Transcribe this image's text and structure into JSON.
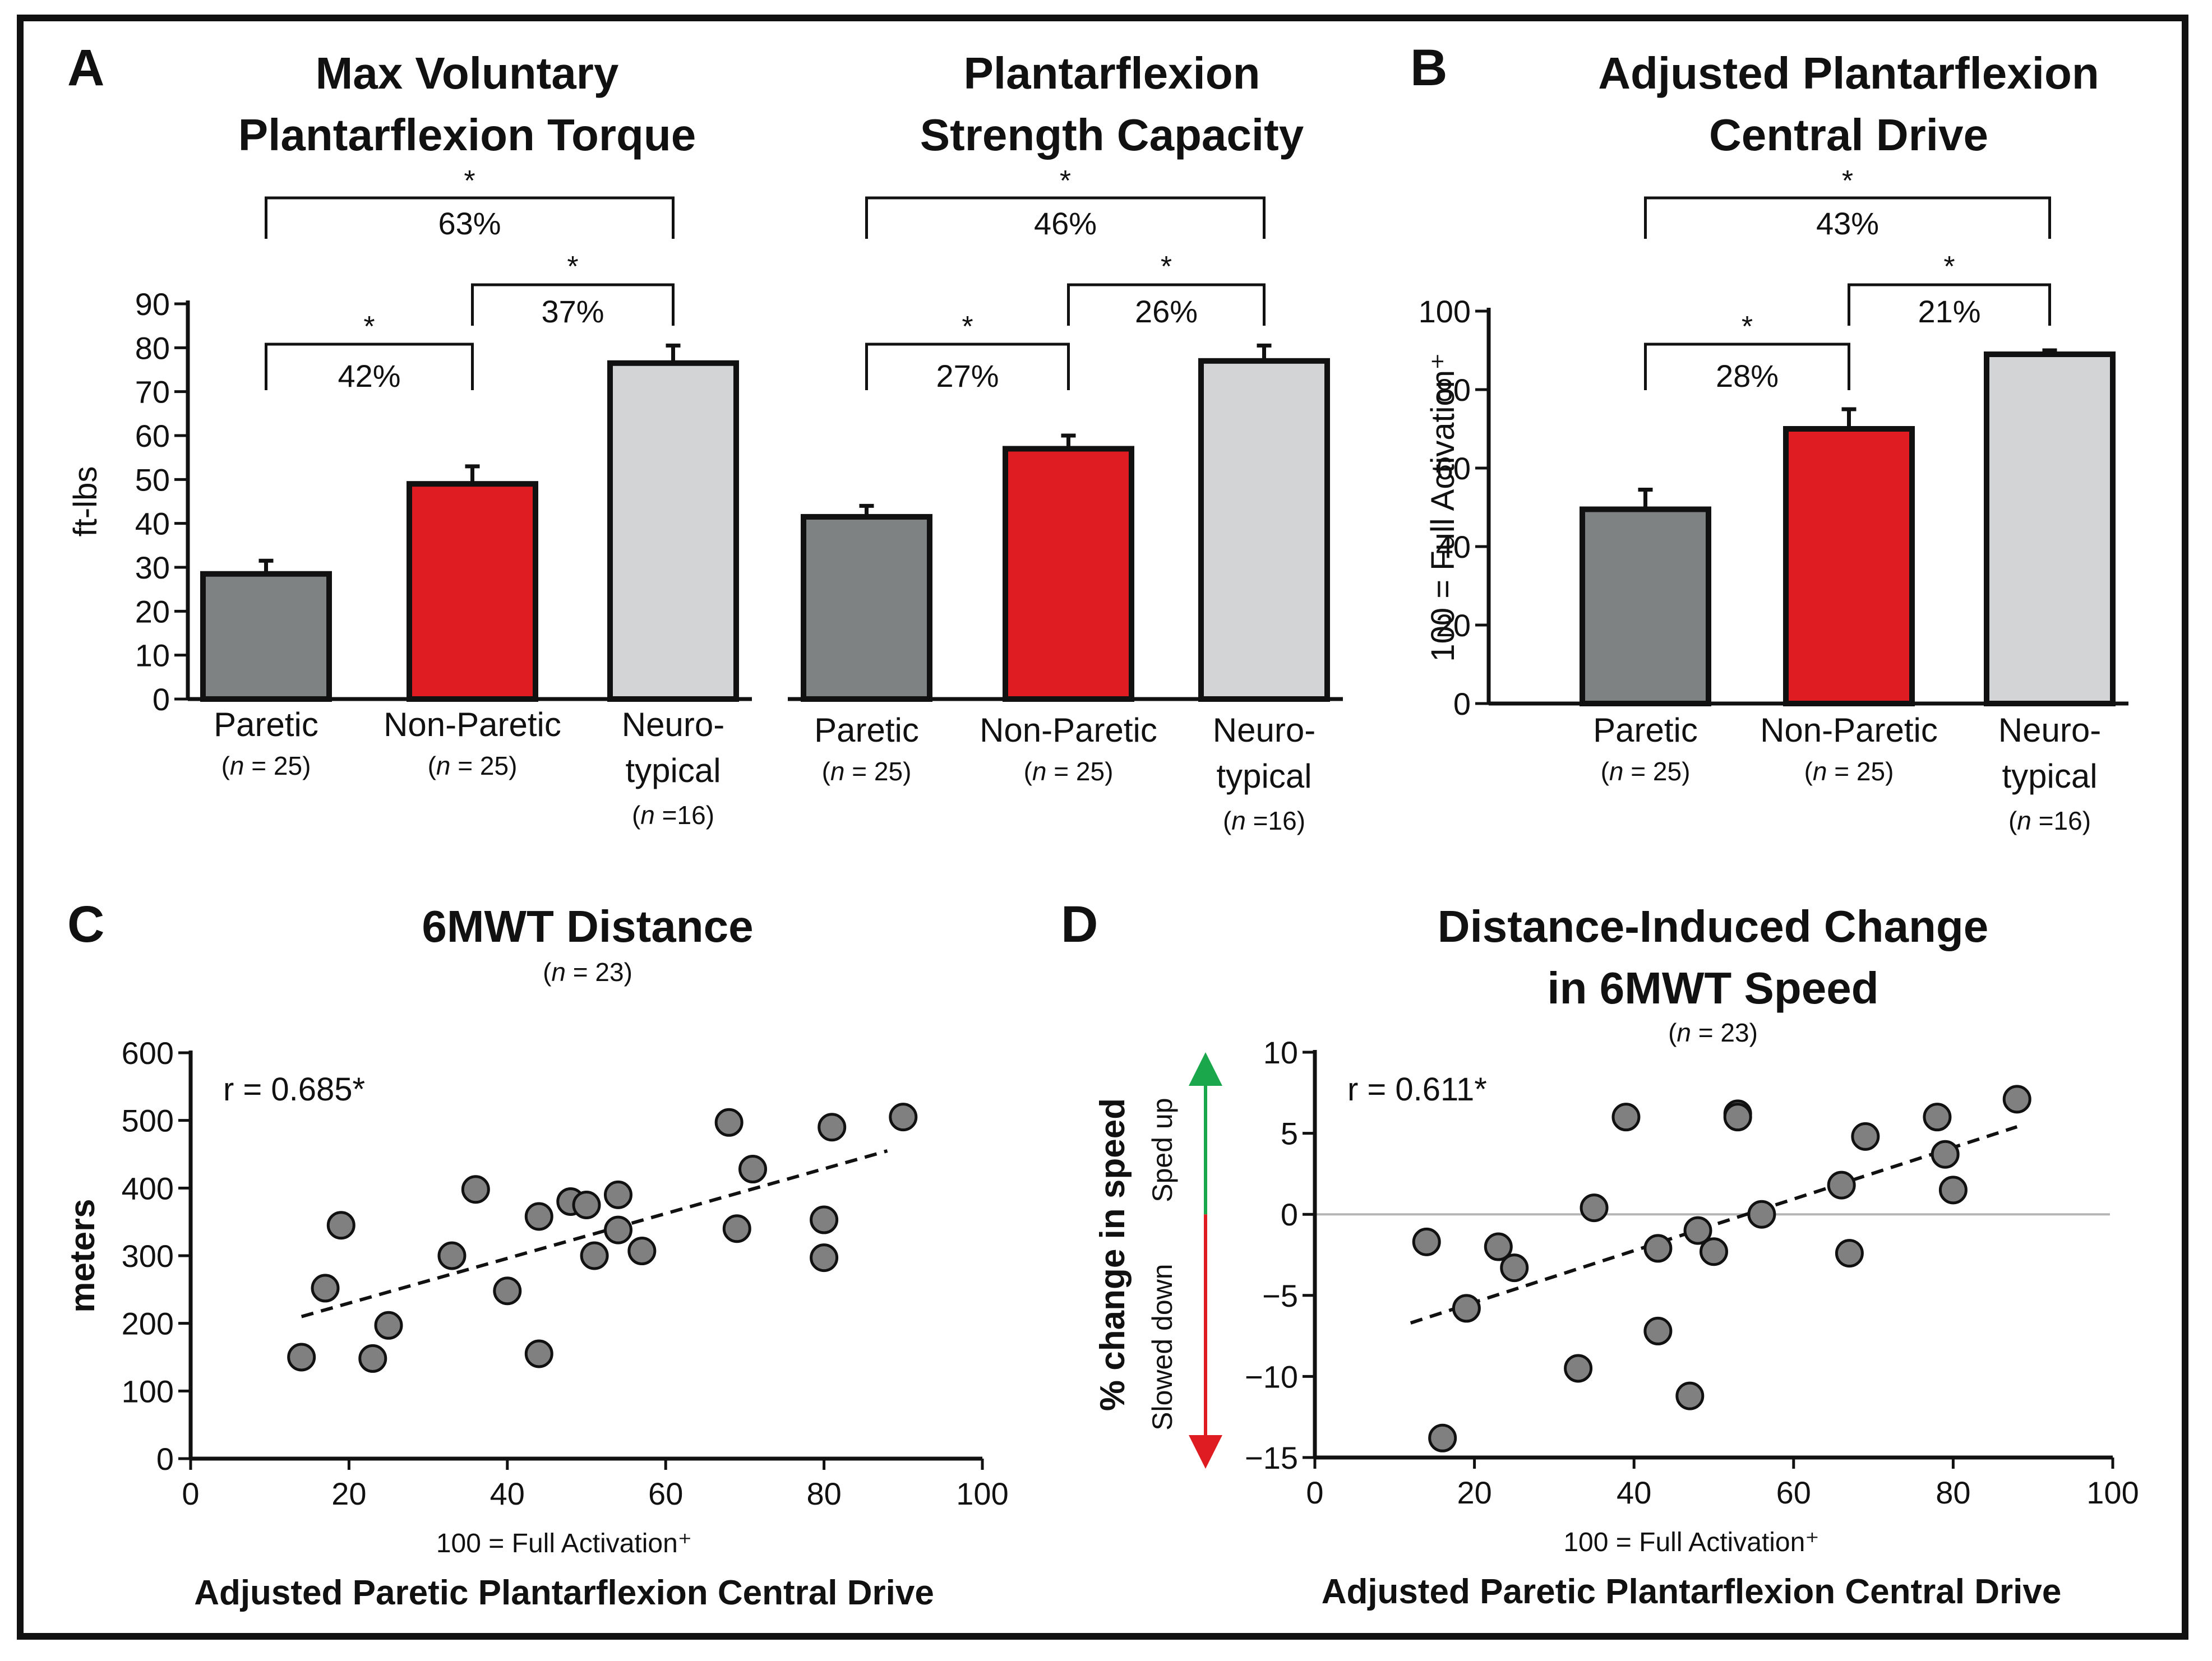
{
  "colors": {
    "paretic": "#7f8282",
    "non_paretic": "#e01c23",
    "neurotypical": "#d3d4d6",
    "point": "#808080",
    "speed_up": "#1aa64b",
    "slowed_down": "#e01c23",
    "zero_line": "#b5b5b5"
  },
  "icons": {
    "up_arrow": "up-arrow-icon",
    "down_arrow": "down-arrow-icon"
  },
  "group_counts": {
    "paretic": "(n = 25)",
    "non_paretic": "(n = 25)",
    "neurotypical": "(n =16)"
  },
  "chart_data": [
    {
      "id": "A1",
      "panel": "A",
      "type": "bar",
      "title_lines": [
        "Max Voluntary",
        "Plantarflexion Torque"
      ],
      "ylabel": "ft-lbs",
      "ylim": [
        0,
        90
      ],
      "yticks": [
        0,
        10,
        20,
        30,
        40,
        50,
        60,
        70,
        80,
        90
      ],
      "categories": [
        "Paretic",
        "Non-Paretic",
        "Neuro-typical"
      ],
      "category_lines": [
        [
          "Paretic"
        ],
        [
          "Non-Paretic"
        ],
        [
          "Neuro-",
          "typical"
        ]
      ],
      "values": [
        28.5,
        49,
        76.5
      ],
      "errors": [
        3,
        4,
        4
      ],
      "comparisons": [
        {
          "from": 0,
          "to": 1,
          "star": "*",
          "label": "42%"
        },
        {
          "from": 1,
          "to": 2,
          "star": "*",
          "label": "37%"
        },
        {
          "from": 0,
          "to": 2,
          "star": "*",
          "label": "63%"
        }
      ]
    },
    {
      "id": "A2",
      "panel": "",
      "type": "bar",
      "title_lines": [
        "Plantarflexion",
        "Strength Capacity"
      ],
      "ylabel": "",
      "ylim": [
        0,
        90
      ],
      "yticks": [],
      "categories": [
        "Paretic",
        "Non-Paretic",
        "Neuro-typical"
      ],
      "category_lines": [
        [
          "Paretic"
        ],
        [
          "Non-Paretic"
        ],
        [
          "Neuro-",
          "typical"
        ]
      ],
      "values": [
        41.5,
        57,
        77
      ],
      "errors": [
        2.5,
        3,
        3.5
      ],
      "comparisons": [
        {
          "from": 0,
          "to": 1,
          "star": "*",
          "label": "27%"
        },
        {
          "from": 1,
          "to": 2,
          "star": "*",
          "label": "26%"
        },
        {
          "from": 0,
          "to": 2,
          "star": "*",
          "label": "46%"
        }
      ]
    },
    {
      "id": "B",
      "panel": "B",
      "type": "bar",
      "title_lines": [
        "Adjusted Plantarflexion",
        "Central Drive"
      ],
      "ylabel": "100 = Full Activation⁺",
      "ylim": [
        0,
        100
      ],
      "yticks": [
        0,
        20,
        40,
        60,
        80,
        100
      ],
      "categories": [
        "Paretic",
        "Non-Paretic",
        "Neuro-typical"
      ],
      "category_lines": [
        [
          "Paretic"
        ],
        [
          "Non-Paretic"
        ],
        [
          "Neuro-",
          "typical"
        ]
      ],
      "values": [
        49.5,
        70,
        89
      ],
      "errors": [
        5,
        5,
        1
      ],
      "comparisons": [
        {
          "from": 0,
          "to": 1,
          "star": "*",
          "label": "28%"
        },
        {
          "from": 1,
          "to": 2,
          "star": "*",
          "label": "21%"
        },
        {
          "from": 0,
          "to": 2,
          "star": "*",
          "label": "43%"
        }
      ]
    },
    {
      "id": "C",
      "panel": "C",
      "type": "scatter",
      "title_lines": [
        "6MWT Distance"
      ],
      "n_label": "(n = 23)",
      "xlabel": "Adjusted Paretic Plantarflexion Central Drive",
      "xlabel_sub": "100 = Full Activation⁺",
      "ylabel": "meters",
      "ylabel_side": "",
      "xlim": [
        0,
        100
      ],
      "ylim": [
        0,
        600
      ],
      "xticks": [
        0,
        20,
        40,
        60,
        80,
        100
      ],
      "yticks": [
        0,
        100,
        200,
        300,
        400,
        500,
        600
      ],
      "annotation": "r = 0.685*",
      "trendline": {
        "x": [
          14,
          88
        ],
        "y": [
          210,
          455
        ]
      },
      "points": [
        {
          "x": 14,
          "y": 150
        },
        {
          "x": 17,
          "y": 252
        },
        {
          "x": 19,
          "y": 345
        },
        {
          "x": 23,
          "y": 148
        },
        {
          "x": 25,
          "y": 197
        },
        {
          "x": 33,
          "y": 300
        },
        {
          "x": 36,
          "y": 398
        },
        {
          "x": 40,
          "y": 248
        },
        {
          "x": 44,
          "y": 358
        },
        {
          "x": 44,
          "y": 155
        },
        {
          "x": 48,
          "y": 380
        },
        {
          "x": 50,
          "y": 375
        },
        {
          "x": 51,
          "y": 300
        },
        {
          "x": 54,
          "y": 390
        },
        {
          "x": 54,
          "y": 338
        },
        {
          "x": 57,
          "y": 307
        },
        {
          "x": 68,
          "y": 497
        },
        {
          "x": 69,
          "y": 340
        },
        {
          "x": 71,
          "y": 428
        },
        {
          "x": 80,
          "y": 297
        },
        {
          "x": 80,
          "y": 353
        },
        {
          "x": 81,
          "y": 490
        },
        {
          "x": 90,
          "y": 505
        }
      ]
    },
    {
      "id": "D",
      "panel": "D",
      "type": "scatter",
      "title_lines": [
        "Distance-Induced Change",
        "in 6MWT Speed"
      ],
      "n_label": "(n = 23)",
      "xlabel": "Adjusted Paretic Plantarflexion Central Drive",
      "xlabel_sub": "100 = Full Activation⁺",
      "ylabel": "% change in speed",
      "ylabel_side": "",
      "speed_up_label": "Sped up",
      "slowed_down_label": "Slowed down",
      "xlim": [
        0,
        100
      ],
      "ylim": [
        -15,
        10
      ],
      "xticks": [
        0,
        20,
        40,
        60,
        80,
        100
      ],
      "yticks": [
        -15,
        -10,
        -5,
        0,
        5,
        10
      ],
      "annotation": "r = 0.611*",
      "zero_line": 0,
      "trendline": {
        "x": [
          12,
          88
        ],
        "y": [
          -6.7,
          5.4
        ]
      },
      "points": [
        {
          "x": 14,
          "y": -1.7
        },
        {
          "x": 16,
          "y": -13.8
        },
        {
          "x": 19,
          "y": -5.8
        },
        {
          "x": 23,
          "y": -2.0
        },
        {
          "x": 25,
          "y": -3.3
        },
        {
          "x": 33,
          "y": -9.5
        },
        {
          "x": 35,
          "y": 0.4
        },
        {
          "x": 39,
          "y": 6.0
        },
        {
          "x": 43,
          "y": -2.1
        },
        {
          "x": 43,
          "y": -7.2
        },
        {
          "x": 47,
          "y": -11.2
        },
        {
          "x": 48,
          "y": -1.0
        },
        {
          "x": 50,
          "y": -2.3
        },
        {
          "x": 53,
          "y": 6.2
        },
        {
          "x": 53,
          "y": 6.0
        },
        {
          "x": 56,
          "y": 0.0
        },
        {
          "x": 66,
          "y": 1.8
        },
        {
          "x": 67,
          "y": -2.4
        },
        {
          "x": 69,
          "y": 4.8
        },
        {
          "x": 78,
          "y": 6.0
        },
        {
          "x": 79,
          "y": 3.7
        },
        {
          "x": 80,
          "y": 1.5
        },
        {
          "x": 88,
          "y": 7.1
        }
      ]
    }
  ]
}
